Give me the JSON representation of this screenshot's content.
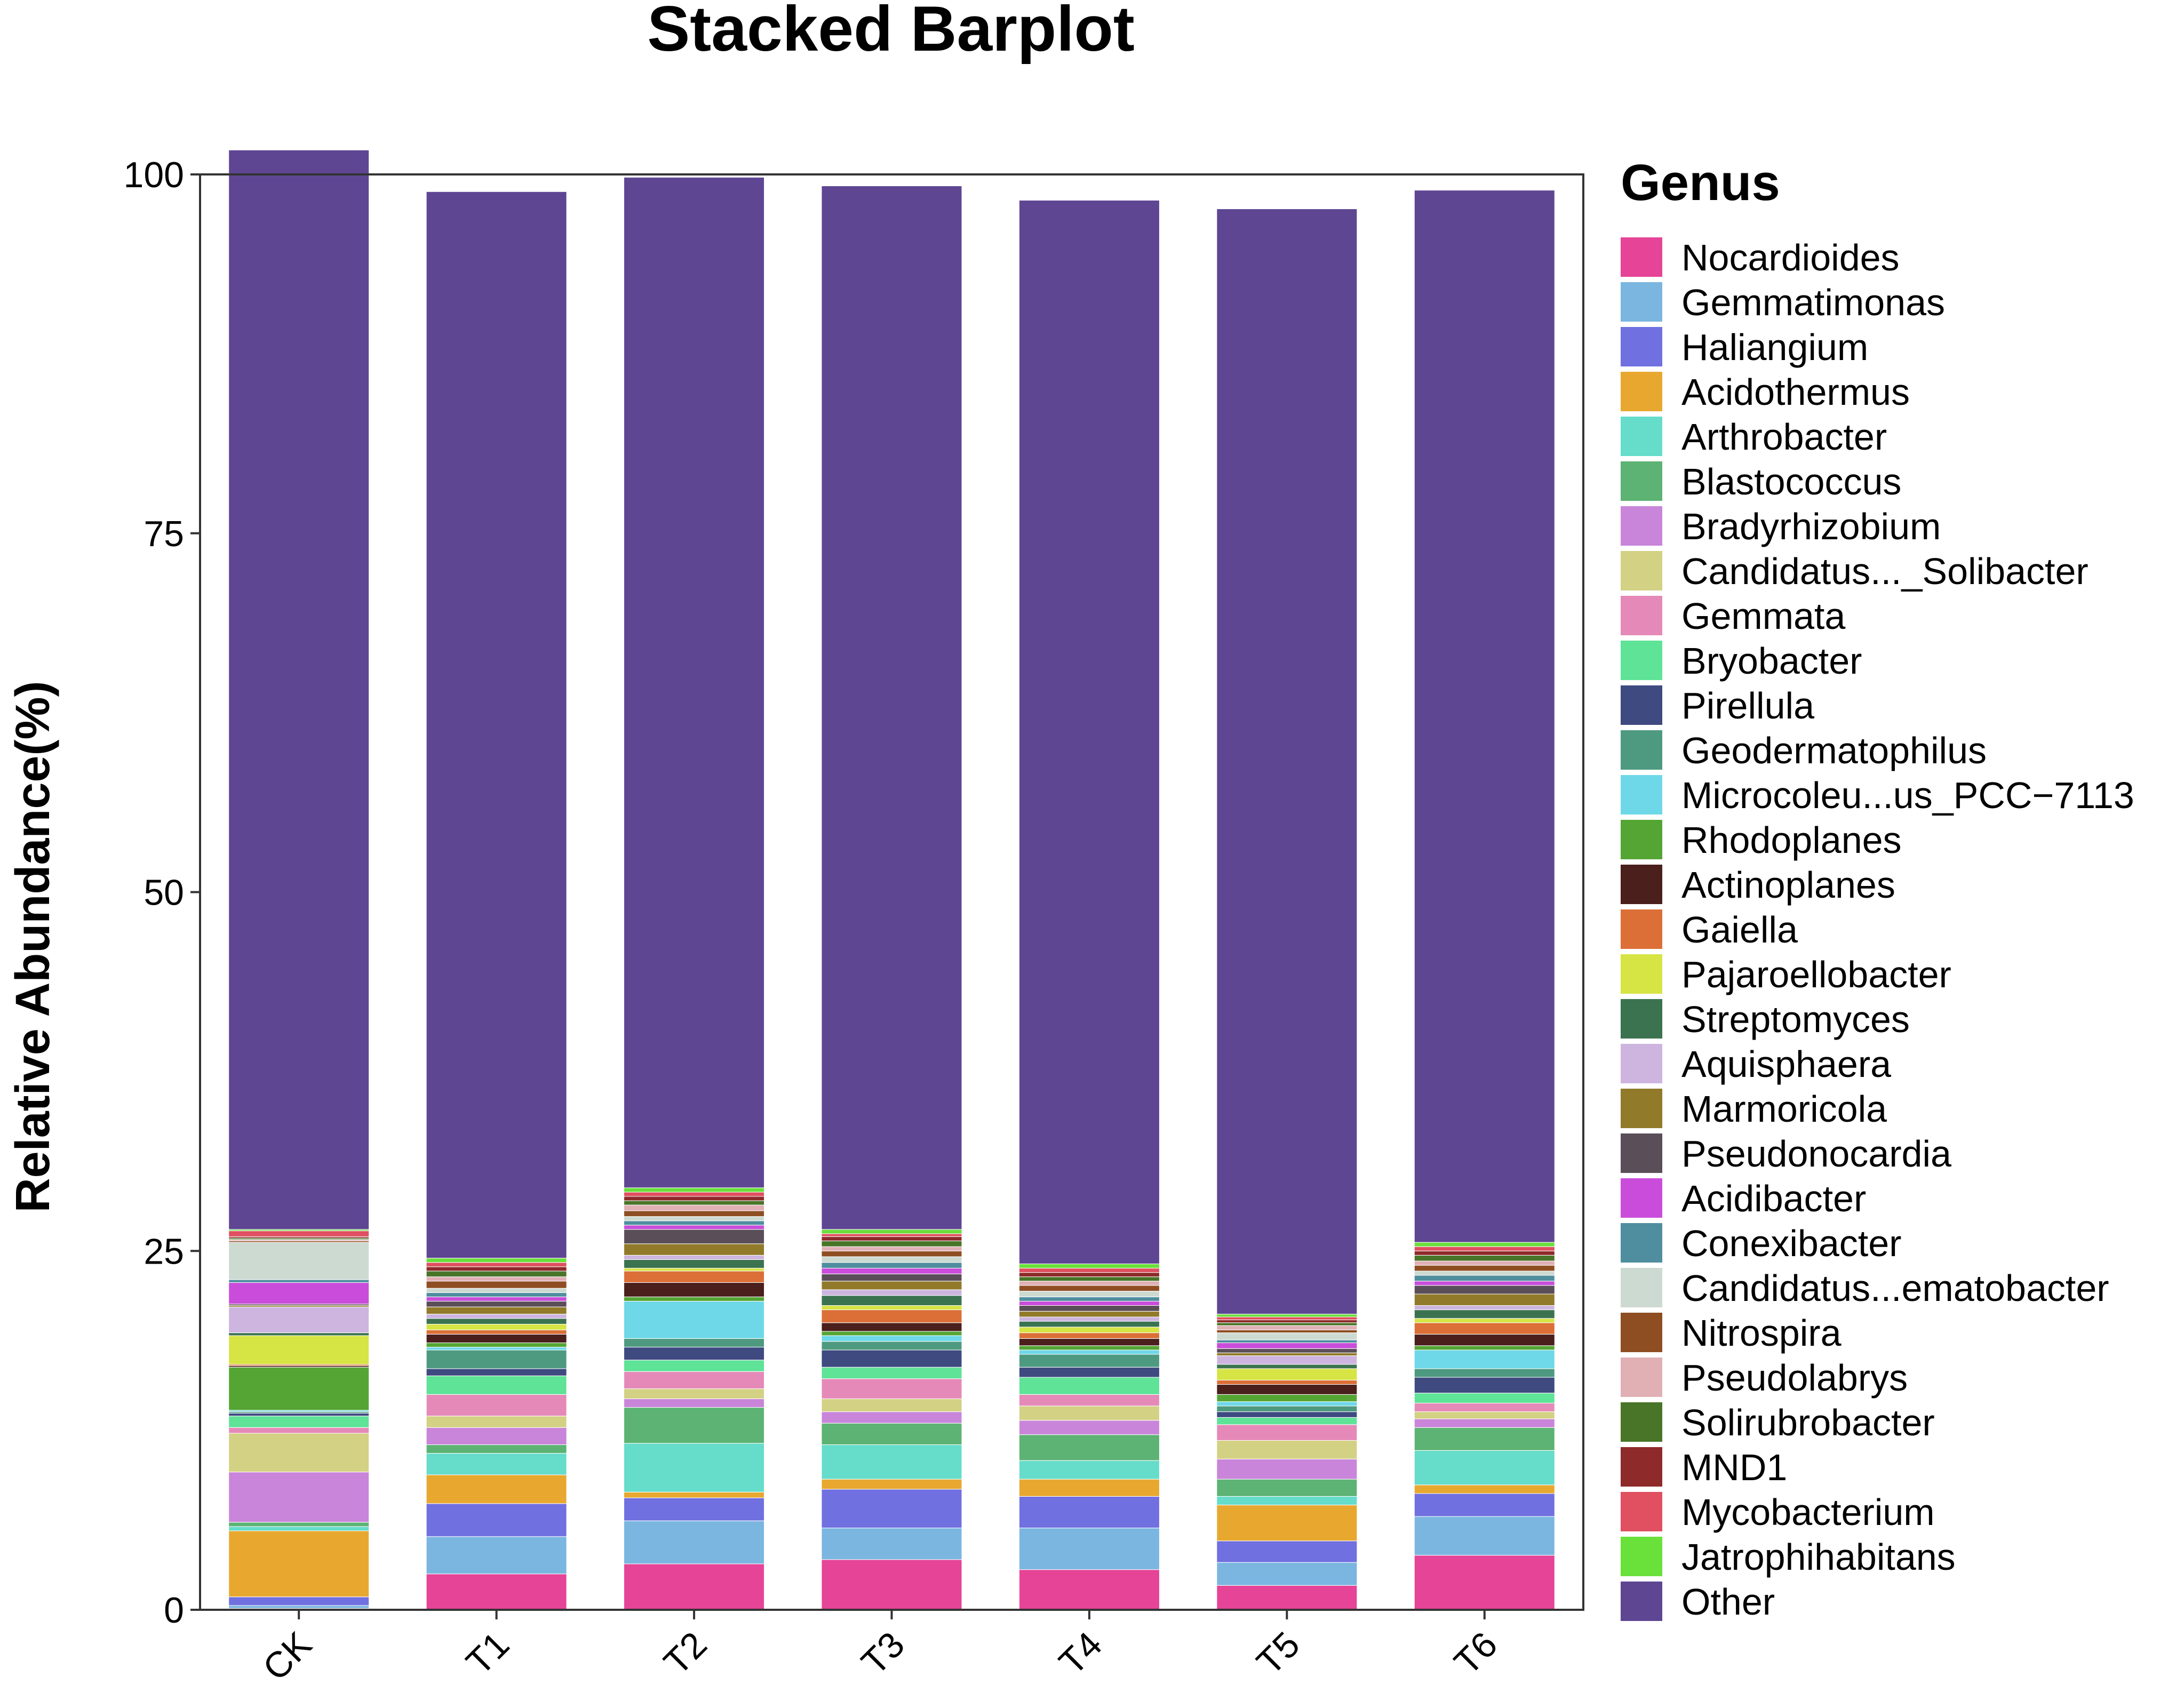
{
  "chart_data": {
    "type": "bar",
    "stacked": true,
    "title": "Stacked Barplot",
    "xlabel": "",
    "ylabel": "Relative Abundance(%)",
    "ylim": [
      0,
      100
    ],
    "yticks": [
      "0",
      "25",
      "50",
      "75",
      "100"
    ],
    "categories": [
      "CK",
      "T1",
      "T2",
      "T3",
      "T4",
      "T5",
      "T6"
    ],
    "legend_title": "Genus",
    "legend_position": "right",
    "grid": false,
    "series": [
      {
        "name": "Nocardioides",
        "color": "#E54497",
        "values": [
          0.1,
          2.5,
          3.2,
          3.5,
          2.8,
          1.7,
          3.8
        ]
      },
      {
        "name": "Gemmatimonas",
        "color": "#7AB6E0",
        "values": [
          0.2,
          2.6,
          3.0,
          2.2,
          2.9,
          1.6,
          2.7
        ]
      },
      {
        "name": "Haliangium",
        "color": "#7070E0",
        "values": [
          0.6,
          2.3,
          1.6,
          2.7,
          2.2,
          1.5,
          1.6
        ]
      },
      {
        "name": "Acidothermus",
        "color": "#E8A830",
        "values": [
          4.6,
          2.0,
          0.4,
          0.7,
          1.2,
          2.5,
          0.6
        ]
      },
      {
        "name": "Arthrobacter",
        "color": "#66DCCB",
        "values": [
          0.3,
          1.5,
          3.4,
          2.4,
          1.3,
          0.6,
          2.4
        ]
      },
      {
        "name": "Blastococcus",
        "color": "#5CB373",
        "values": [
          0.3,
          0.6,
          2.5,
          1.5,
          1.8,
          1.2,
          1.6
        ]
      },
      {
        "name": "Bradyrhizobium",
        "color": "#C985DA",
        "values": [
          3.5,
          1.2,
          0.6,
          0.8,
          1.0,
          1.4,
          0.6
        ]
      },
      {
        "name": "Candidatus..._Solibacter",
        "color": "#D3D183",
        "values": [
          2.7,
          0.8,
          0.7,
          0.9,
          1.0,
          1.3,
          0.5
        ]
      },
      {
        "name": "Gemmata",
        "color": "#E58AB8",
        "values": [
          0.4,
          1.5,
          1.2,
          1.4,
          0.8,
          1.1,
          0.6
        ]
      },
      {
        "name": "Bryobacter",
        "color": "#5EE397",
        "values": [
          0.8,
          1.3,
          0.8,
          0.8,
          1.2,
          0.5,
          0.7
        ]
      },
      {
        "name": "Pirellula",
        "color": "#3E4A80",
        "values": [
          0.2,
          0.5,
          0.9,
          1.2,
          0.7,
          0.4,
          1.1
        ]
      },
      {
        "name": "Geodermatophilus",
        "color": "#4E9A80",
        "values": [
          0.1,
          1.3,
          0.6,
          0.6,
          0.9,
          0.4,
          0.6
        ]
      },
      {
        "name": "Microcoleu...us_PCC−7113",
        "color": "#6ED8E8",
        "values": [
          0.1,
          0.2,
          2.6,
          0.4,
          0.3,
          0.3,
          1.3
        ]
      },
      {
        "name": "Rhodoplanes",
        "color": "#54A534",
        "values": [
          3.0,
          0.3,
          0.3,
          0.3,
          0.3,
          0.5,
          0.3
        ]
      },
      {
        "name": "Actinoplanes",
        "color": "#4A1F1C",
        "values": [
          0.1,
          0.6,
          1.0,
          0.6,
          0.5,
          0.7,
          0.8
        ]
      },
      {
        "name": "Gaiella",
        "color": "#DC6F37",
        "values": [
          0.1,
          0.3,
          0.8,
          0.9,
          0.4,
          0.3,
          0.8
        ]
      },
      {
        "name": "Pajaroellobacter",
        "color": "#D6E444",
        "values": [
          2.0,
          0.4,
          0.2,
          0.3,
          0.4,
          0.8,
          0.3
        ]
      },
      {
        "name": "Streptomyces",
        "color": "#3B7350",
        "values": [
          0.2,
          0.4,
          0.6,
          0.7,
          0.4,
          0.3,
          0.6
        ]
      },
      {
        "name": "Aquisphaera",
        "color": "#CDB5E0",
        "values": [
          1.8,
          0.3,
          0.3,
          0.4,
          0.3,
          0.6,
          0.3
        ]
      },
      {
        "name": "Marmoricola",
        "color": "#917A2A",
        "values": [
          0.1,
          0.5,
          0.8,
          0.6,
          0.4,
          0.2,
          0.8
        ]
      },
      {
        "name": "Pseudonocardia",
        "color": "#5A4E58",
        "values": [
          0.1,
          0.4,
          1.0,
          0.5,
          0.4,
          0.3,
          0.6
        ]
      },
      {
        "name": "Acidibacter",
        "color": "#C94DDA",
        "values": [
          1.5,
          0.3,
          0.3,
          0.4,
          0.3,
          0.4,
          0.3
        ]
      },
      {
        "name": "Conexibacter",
        "color": "#4F8E9E",
        "values": [
          0.2,
          0.3,
          0.3,
          0.4,
          0.3,
          0.2,
          0.4
        ]
      },
      {
        "name": "Candidatus...ematobacter",
        "color": "#CDDAD2",
        "values": [
          2.6,
          0.3,
          0.3,
          0.4,
          0.4,
          0.5,
          0.3
        ]
      },
      {
        "name": "Nitrospira",
        "color": "#8E4E22",
        "values": [
          0.1,
          0.5,
          0.4,
          0.4,
          0.4,
          0.2,
          0.4
        ]
      },
      {
        "name": "Pseudolabrys",
        "color": "#E0B0B5",
        "values": [
          0.1,
          0.3,
          0.4,
          0.3,
          0.3,
          0.3,
          0.3
        ]
      },
      {
        "name": "Solirubrobacter",
        "color": "#487528",
        "values": [
          0.1,
          0.4,
          0.3,
          0.4,
          0.3,
          0.2,
          0.4
        ]
      },
      {
        "name": "MND1",
        "color": "#8E2A2A",
        "values": [
          0.1,
          0.3,
          0.3,
          0.3,
          0.3,
          0.2,
          0.3
        ]
      },
      {
        "name": "Mycobacterium",
        "color": "#E05060",
        "values": [
          0.4,
          0.3,
          0.3,
          0.2,
          0.3,
          0.2,
          0.3
        ]
      },
      {
        "name": "Jatrophihabitans",
        "color": "#6AE03A",
        "values": [
          0.1,
          0.3,
          0.3,
          0.3,
          0.3,
          0.2,
          0.3
        ]
      },
      {
        "name": "Other",
        "color": "#5E4693",
        "values": [
          75.2,
          74.3,
          70.4,
          72.7,
          74.1,
          77.0,
          73.3
        ]
      }
    ]
  }
}
